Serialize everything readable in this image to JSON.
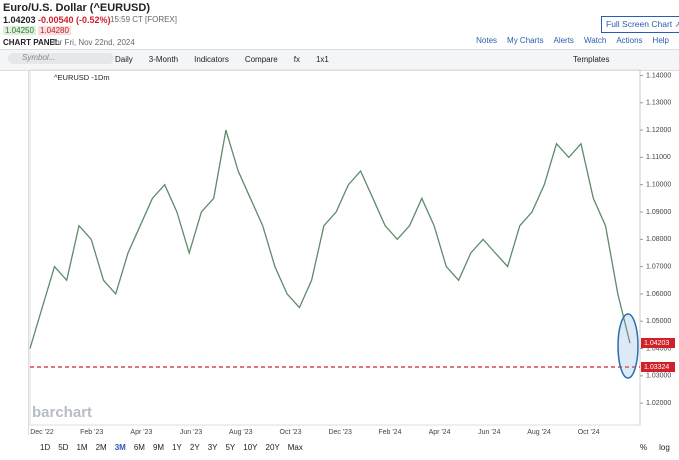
{
  "header": {
    "title": "Euro/U.S. Dollar (^EURUSD)",
    "price": "1.04203",
    "change": "-0.00540 (-0.52%)",
    "time": "15:59 CT [FOREX]",
    "bid": "1.04250",
    "ask": "1.04280",
    "panel": "CHART PANEL",
    "panel_date": "for Fri, Nov 22nd, 2024",
    "fullscreen": "Full Screen Chart",
    "links": [
      "Notes",
      "My Charts",
      "Alerts",
      "Watch",
      "Actions",
      "Help"
    ]
  },
  "toolbar": {
    "symbol": "Symbol...",
    "items": [
      "Daily",
      "3-Month",
      "Indicators",
      "Compare",
      "fx",
      "1x1"
    ],
    "templates": "Templates"
  },
  "chart_data": {
    "type": "line",
    "legend": "^EURUSD -1Dm",
    "watermark": "barchart",
    "color": "#5e8a6c",
    "xticks": [
      "Dec '22",
      "Feb '23",
      "Apr '23",
      "Jun '23",
      "Aug '23",
      "Oct '23",
      "Dec '23",
      "Feb '24",
      "Apr '24",
      "Jun '24",
      "Aug '24",
      "Oct '24"
    ],
    "values": [
      1.04,
      1.055,
      1.07,
      1.065,
      1.085,
      1.08,
      1.065,
      1.06,
      1.075,
      1.085,
      1.095,
      1.1,
      1.09,
      1.075,
      1.09,
      1.095,
      1.12,
      1.105,
      1.095,
      1.085,
      1.07,
      1.06,
      1.055,
      1.065,
      1.085,
      1.09,
      1.1,
      1.105,
      1.095,
      1.085,
      1.08,
      1.085,
      1.095,
      1.085,
      1.07,
      1.065,
      1.075,
      1.08,
      1.075,
      1.07,
      1.085,
      1.09,
      1.1,
      1.115,
      1.11,
      1.115,
      1.095,
      1.085,
      1.06,
      1.042
    ],
    "ylim": [
      1.012,
      1.142
    ],
    "yticks": [
      {
        "value": 1.14,
        "label": "1.14000"
      },
      {
        "value": 1.13,
        "label": "1.13000"
      },
      {
        "value": 1.12,
        "label": "1.12000"
      },
      {
        "value": 1.11,
        "label": "1.11000"
      },
      {
        "value": 1.1,
        "label": "1.10000"
      },
      {
        "value": 1.09,
        "label": "1.09000"
      },
      {
        "value": 1.08,
        "label": "1.08000"
      },
      {
        "value": 1.07,
        "label": "1.07000"
      },
      {
        "value": 1.06,
        "label": "1.06000"
      },
      {
        "value": 1.05,
        "label": "1.05000"
      },
      {
        "value": 1.04,
        "label": "1.04000"
      },
      {
        "value": 1.03,
        "label": "1.03000"
      },
      {
        "value": 1.02,
        "label": "1.02000"
      }
    ],
    "last_price": {
      "value": 1.04203,
      "label": "1.04203"
    },
    "level": {
      "value": 1.03324,
      "label": "1.03324"
    }
  },
  "range_buttons": [
    "1D",
    "5D",
    "1M",
    "2M",
    "3M",
    "6M",
    "9M",
    "1Y",
    "2Y",
    "3Y",
    "5Y",
    "10Y",
    "20Y",
    "Max"
  ],
  "options": [
    "%",
    "log"
  ]
}
